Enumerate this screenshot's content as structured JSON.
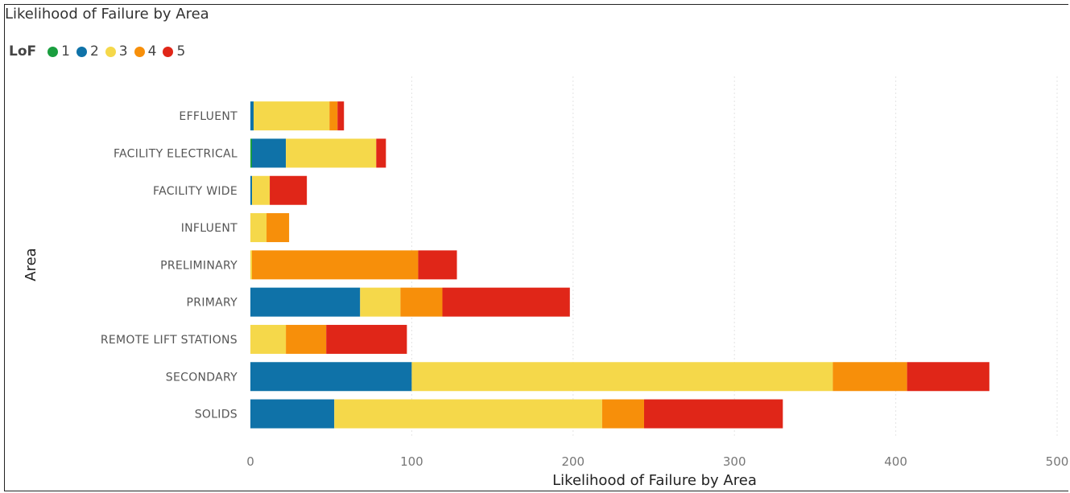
{
  "chart_data": {
    "type": "bar",
    "orientation": "horizontal",
    "stacked": true,
    "title": "Likelihood of Failure by Area",
    "xlabel": "Likelihood of Failure by Area",
    "ylabel": "Area",
    "xlim": [
      0,
      500
    ],
    "xticks": [
      "0",
      "100",
      "200",
      "300",
      "400",
      "500"
    ],
    "grid": true,
    "legend": {
      "title": "LoF",
      "placement": "top-left",
      "items": [
        {
          "label": "1",
          "color": "#1a9e3f"
        },
        {
          "label": "2",
          "color": "#0f72a8"
        },
        {
          "label": "3",
          "color": "#f5d84a"
        },
        {
          "label": "4",
          "color": "#f78f0a"
        },
        {
          "label": "5",
          "color": "#e02618"
        }
      ]
    },
    "categories": [
      "EFFLUENT",
      "FACILITY ELECTRICAL",
      "FACILITY WIDE",
      "INFLUENT",
      "PRELIMINARY",
      "PRIMARY",
      "REMOTE LIFT STATIONS",
      "SECONDARY",
      "SOLIDS"
    ],
    "series": [
      {
        "name": "1",
        "color": "#1a9e3f",
        "values": [
          0,
          1,
          0,
          0,
          0,
          0,
          0,
          0,
          0
        ]
      },
      {
        "name": "2",
        "color": "#0f72a8",
        "values": [
          2,
          21,
          1,
          0,
          0,
          68,
          0,
          100,
          52
        ]
      },
      {
        "name": "3",
        "color": "#f5d84a",
        "values": [
          47,
          56,
          11,
          10,
          1,
          25,
          22,
          261,
          166
        ]
      },
      {
        "name": "4",
        "color": "#f78f0a",
        "values": [
          5,
          0,
          0,
          14,
          103,
          26,
          25,
          46,
          26
        ]
      },
      {
        "name": "5",
        "color": "#e02618",
        "values": [
          4,
          6,
          23,
          0,
          24,
          79,
          50,
          51,
          86
        ]
      }
    ]
  }
}
